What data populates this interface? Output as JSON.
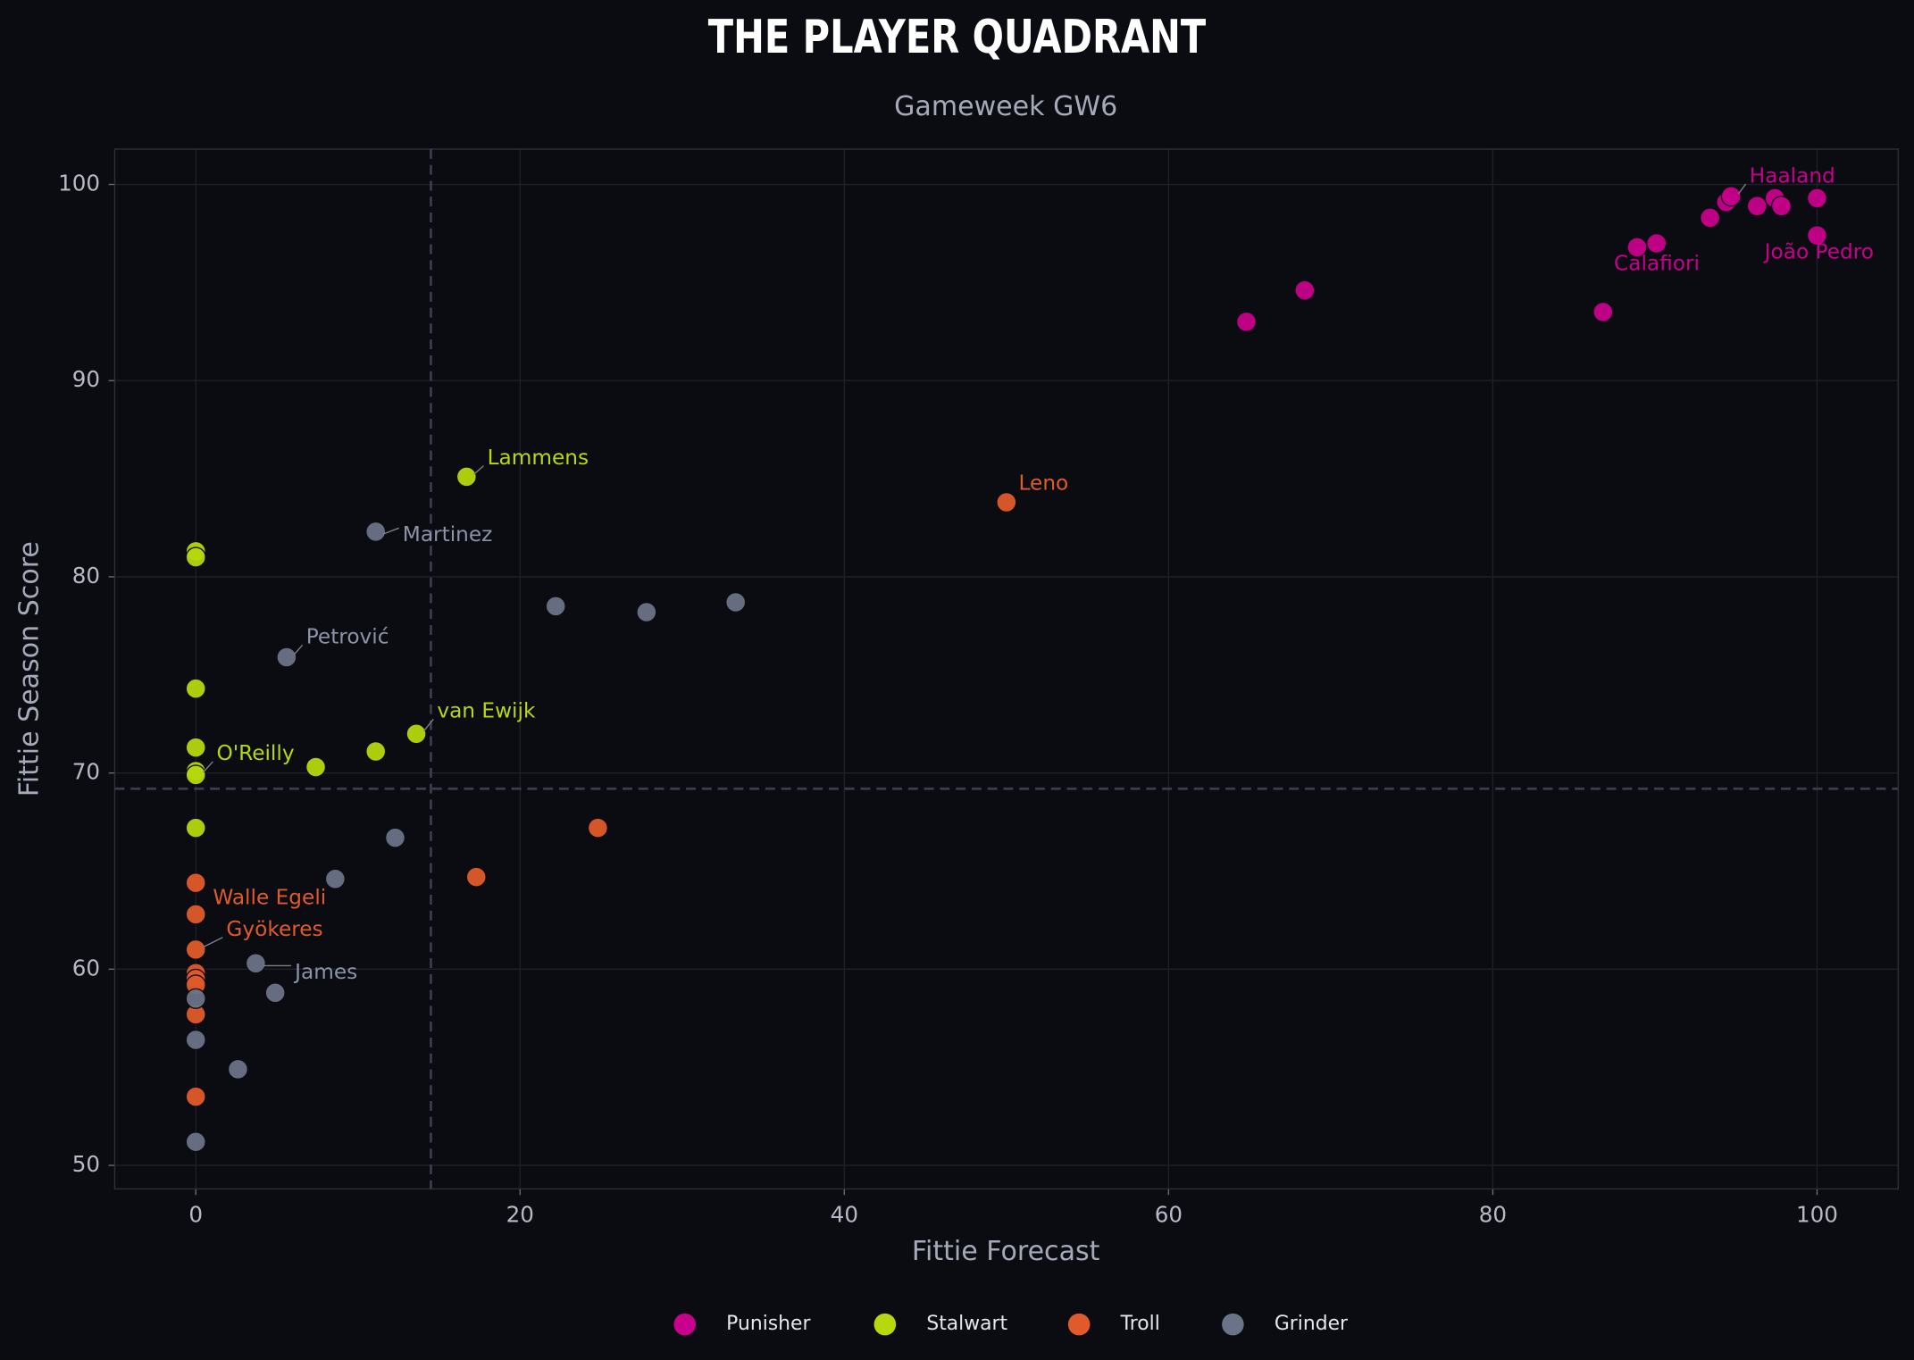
{
  "chart_data": {
    "type": "scatter",
    "title": "THE PLAYER QUADRANT",
    "subtitle": "Gameweek GW6",
    "x_label": "Fittie Forecast",
    "y_label": "Fittie Season Score",
    "xlim": [
      -5,
      105
    ],
    "ylim": [
      48.8,
      101.8
    ],
    "xticks": [
      0,
      20,
      40,
      60,
      80,
      100
    ],
    "yticks": [
      50,
      60,
      70,
      80,
      90,
      100
    ],
    "grid": true,
    "legend": "bottom",
    "x_reference": 14.5,
    "y_reference": 69.2,
    "series": [
      {
        "name": "Punisher",
        "color": "#c8008c",
        "x": [
          64.8,
          68.4,
          86.8,
          88.9,
          90.1,
          93.4,
          94.4,
          94.7,
          96.3,
          97.4,
          97.8,
          100,
          100
        ],
        "y": [
          93.0,
          94.6,
          93.5,
          96.8,
          97.0,
          98.3,
          99.1,
          99.4,
          98.9,
          99.3,
          98.9,
          99.3,
          97.4
        ],
        "labels": [
          null,
          null,
          null,
          "Calafiori",
          null,
          null,
          null,
          "Haaland",
          null,
          null,
          null,
          null,
          "João Pedro"
        ]
      },
      {
        "name": "Stalwart",
        "color": "#b6d80c",
        "x": [
          0,
          0,
          0,
          0,
          0,
          0,
          0,
          7.4,
          11.1,
          13.6,
          16.7
        ],
        "y": [
          81.3,
          81.0,
          74.3,
          71.3,
          70.1,
          69.9,
          67.2,
          70.3,
          71.1,
          72.0,
          85.1
        ],
        "labels": [
          null,
          null,
          null,
          null,
          null,
          "O'Reilly",
          null,
          null,
          null,
          "van Ewijk",
          "Lammens"
        ]
      },
      {
        "name": "Troll",
        "color": "#e05a2b",
        "x": [
          0,
          0,
          0,
          0,
          0,
          0,
          0,
          0,
          17.3,
          24.8,
          50.0
        ],
        "y": [
          64.4,
          62.8,
          61.0,
          59.8,
          59.5,
          59.2,
          57.7,
          53.5,
          64.7,
          67.2,
          83.8
        ],
        "labels": [
          null,
          "Walle Egeli",
          "Gyökeres",
          null,
          null,
          null,
          null,
          null,
          null,
          null,
          "Leno"
        ]
      },
      {
        "name": "Grinder",
        "color": "#6b7388",
        "x": [
          0,
          0,
          0,
          2.6,
          3.7,
          4.9,
          5.6,
          8.6,
          11.1,
          12.3,
          22.2,
          27.8,
          33.3
        ],
        "y": [
          58.5,
          56.4,
          51.2,
          54.9,
          60.3,
          58.8,
          75.9,
          64.6,
          82.3,
          66.7,
          78.5,
          78.2,
          78.7
        ],
        "labels": [
          null,
          null,
          null,
          null,
          "James",
          null,
          "Petrović",
          null,
          "Martinez",
          null,
          null,
          null,
          null
        ]
      }
    ]
  }
}
